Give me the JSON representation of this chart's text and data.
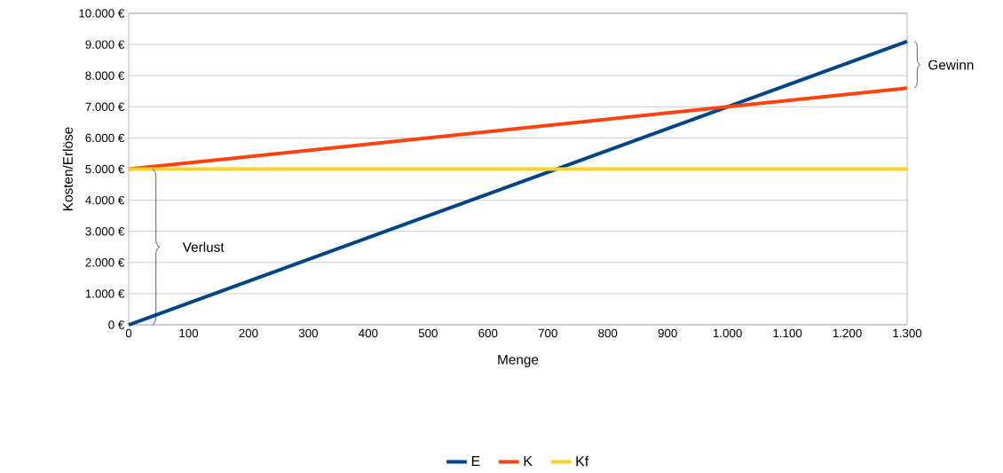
{
  "chart_data": {
    "type": "line",
    "xlabel": "Menge",
    "ylabel": "Kosten/Erlöse",
    "x": [
      0,
      1300
    ],
    "series": [
      {
        "name": "E",
        "color": "#004586",
        "values": [
          0,
          9100
        ]
      },
      {
        "name": "K",
        "color": "#ff420e",
        "values": [
          5000,
          7600
        ]
      },
      {
        "name": "Kf",
        "color": "#ffd320",
        "values": [
          5000,
          5000
        ]
      }
    ],
    "xlim": [
      0,
      1300
    ],
    "ylim": [
      0,
      10000
    ],
    "xticks": [
      0,
      100,
      200,
      300,
      400,
      500,
      600,
      700,
      800,
      900,
      {
        "value": 1000,
        "label": "1.000"
      },
      {
        "value": 1100,
        "label": "1.100"
      },
      {
        "value": 1200,
        "label": "1.200"
      },
      {
        "value": 1300,
        "label": "1.300"
      }
    ],
    "yticks": [
      {
        "value": 0,
        "label": "0 €"
      },
      {
        "value": 1000,
        "label": "1.000 €"
      },
      {
        "value": 2000,
        "label": "2.000 €"
      },
      {
        "value": 3000,
        "label": "3.000 €"
      },
      {
        "value": 4000,
        "label": "4.000 €"
      },
      {
        "value": 5000,
        "label": "5.000 €"
      },
      {
        "value": 6000,
        "label": "6.000 €"
      },
      {
        "value": 7000,
        "label": "7.000 €"
      },
      {
        "value": 8000,
        "label": "8.000 €"
      },
      {
        "value": 9000,
        "label": "9.000 €"
      },
      {
        "value": 10000,
        "label": "10.000 €"
      }
    ],
    "grid": "y",
    "legend": "bottom",
    "marker": "none",
    "line_style": "solid",
    "annotations": [
      "Gewinn",
      "Verlust"
    ]
  }
}
